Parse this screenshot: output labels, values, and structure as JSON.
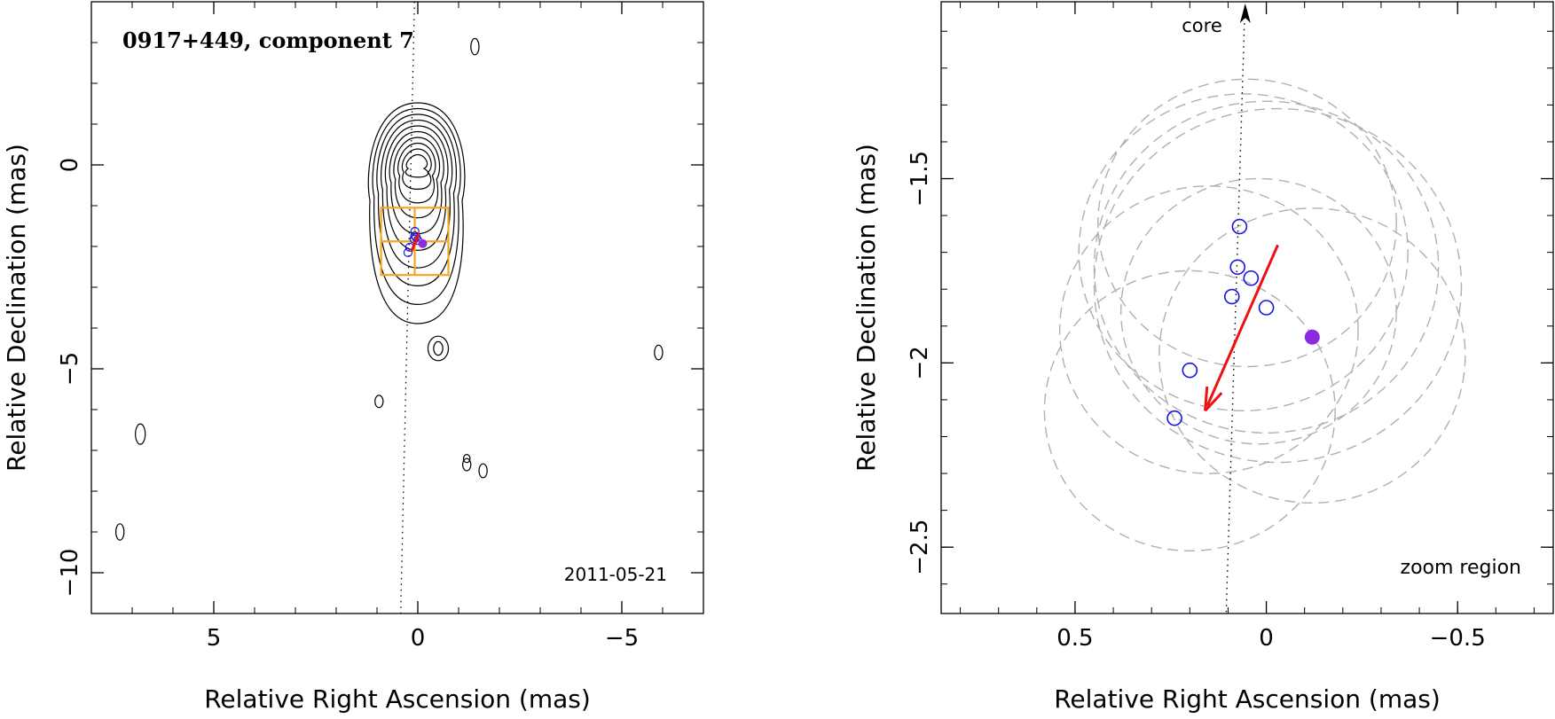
{
  "colors": {
    "axis": "#000000",
    "contour": "#000000",
    "circle_outline": "#1515e6",
    "filled_point": "#8a2be2",
    "arrow": "#ee1111",
    "box": "#f5a623",
    "dashed_circle": "#b0b0b0"
  },
  "chart_data": [
    {
      "type": "contour",
      "title": "0917+449, component 7",
      "date": "2011-05-21",
      "xlabel": "Relative Right Ascension (mas)",
      "ylabel": "Relative Declination (mas)",
      "xlim": [
        8,
        -7
      ],
      "ylim": [
        -11,
        4
      ],
      "xticks": [
        5,
        0,
        -5
      ],
      "xticklabels": [
        "5",
        "0",
        "−5"
      ],
      "yticks": [
        0,
        -5,
        -10
      ],
      "yticklabels": [
        "0",
        "−5",
        "−10"
      ],
      "core_contours": {
        "center": [
          0,
          0
        ],
        "levels": 10
      },
      "islands": [
        {
          "x": -0.5,
          "y": -4.5,
          "rx": 0.25,
          "ry": 0.3
        },
        {
          "x": 0.95,
          "y": -5.8,
          "rx": 0.1,
          "ry": 0.15
        },
        {
          "x": -1.2,
          "y": -7.2,
          "rx": 0.08,
          "ry": 0.1
        },
        {
          "x": -1.2,
          "y": -7.35,
          "rx": 0.1,
          "ry": 0.15
        },
        {
          "x": -1.6,
          "y": -7.5,
          "rx": 0.1,
          "ry": 0.17
        },
        {
          "x": 6.8,
          "y": -6.6,
          "rx": 0.12,
          "ry": 0.25
        },
        {
          "x": 7.3,
          "y": -9.0,
          "rx": 0.1,
          "ry": 0.2
        },
        {
          "x": -5.9,
          "y": -4.6,
          "rx": 0.1,
          "ry": 0.18
        },
        {
          "x": -1.4,
          "y": 2.9,
          "rx": 0.1,
          "ry": 0.2
        }
      ],
      "zoom_box": {
        "x0": 0.9,
        "x1": -0.75,
        "y0": -1.05,
        "y1": -2.7
      },
      "ridge_line": [
        [
          0.08,
          4.0
        ],
        [
          0.42,
          -11.0
        ]
      ],
      "points_open": [
        {
          "x": 0.07,
          "y": -1.63
        },
        {
          "x": 0.075,
          "y": -1.74
        },
        {
          "x": 0.04,
          "y": -1.77
        },
        {
          "x": 0.09,
          "y": -1.82
        },
        {
          "x": 0.0,
          "y": -1.85
        },
        {
          "x": 0.2,
          "y": -2.02
        },
        {
          "x": 0.24,
          "y": -2.15
        }
      ],
      "point_filled": {
        "x": -0.12,
        "y": -1.93
      },
      "arrow": {
        "from": [
          -0.03,
          -1.68
        ],
        "to": [
          0.16,
          -2.13
        ]
      }
    },
    {
      "type": "scatter",
      "label": "zoom region",
      "core_label": "core",
      "xlabel": "Relative Right Ascension (mas)",
      "ylabel": "Relative Declination (mas)",
      "xlim": [
        0.85,
        -0.75
      ],
      "ylim": [
        -2.68,
        -1.02
      ],
      "xticks": [
        0.5,
        0,
        -0.5
      ],
      "xticklabels": [
        "0.5",
        "0",
        "−0.5"
      ],
      "yticks": [
        -1.5,
        -2,
        -2.5
      ],
      "yticklabels": [
        "−1.5",
        "−2",
        "−2.5"
      ],
      "points_open": [
        {
          "x": 0.07,
          "y": -1.63
        },
        {
          "x": 0.075,
          "y": -1.74
        },
        {
          "x": 0.04,
          "y": -1.77
        },
        {
          "x": 0.09,
          "y": -1.82
        },
        {
          "x": 0.0,
          "y": -1.85
        },
        {
          "x": 0.2,
          "y": -2.02
        },
        {
          "x": 0.24,
          "y": -2.15
        }
      ],
      "point_filled": {
        "x": -0.12,
        "y": -1.93
      },
      "arrow": {
        "from": [
          -0.03,
          -1.68
        ],
        "to": [
          0.16,
          -2.13
        ]
      },
      "ridge_line": [
        [
          0.055,
          -1.0
        ],
        [
          0.105,
          -2.68
        ]
      ],
      "core_arrow_x": 0.055,
      "error_circles": [
        {
          "x": 0.05,
          "y": -1.62,
          "r": 0.39
        },
        {
          "x": 0.0,
          "y": -1.74,
          "r": 0.45
        },
        {
          "x": -0.03,
          "y": -1.79,
          "r": 0.48
        },
        {
          "x": 0.06,
          "y": -1.7,
          "r": 0.43
        },
        {
          "x": 0.02,
          "y": -1.86,
          "r": 0.36
        },
        {
          "x": 0.15,
          "y": -1.91,
          "r": 0.39
        },
        {
          "x": 0.2,
          "y": -2.13,
          "r": 0.38
        },
        {
          "x": -0.12,
          "y": -1.98,
          "r": 0.4
        }
      ]
    }
  ]
}
